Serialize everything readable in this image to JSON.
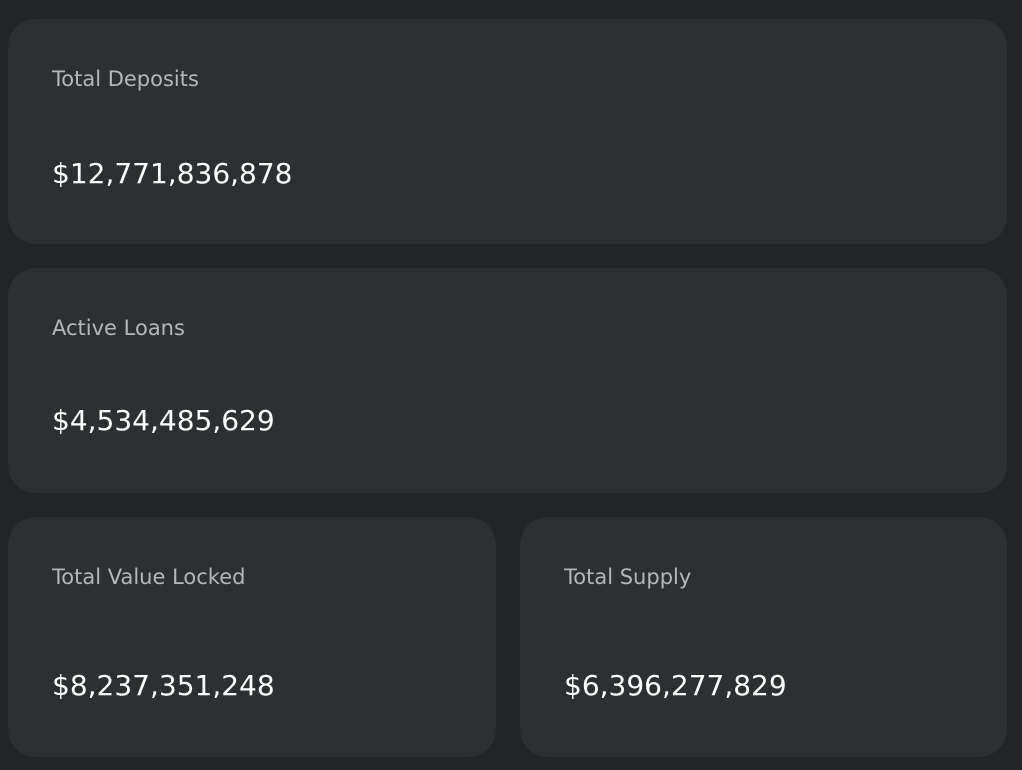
{
  "stats": [
    {
      "label": "Total Deposits",
      "value": "$12,771,836,878"
    },
    {
      "label": "Active Loans",
      "value": "$4,534,485,629"
    },
    {
      "label": "Total Value Locked",
      "value": "$8,237,351,248"
    },
    {
      "label": "Total Supply",
      "value": "$6,396,277,829"
    }
  ]
}
